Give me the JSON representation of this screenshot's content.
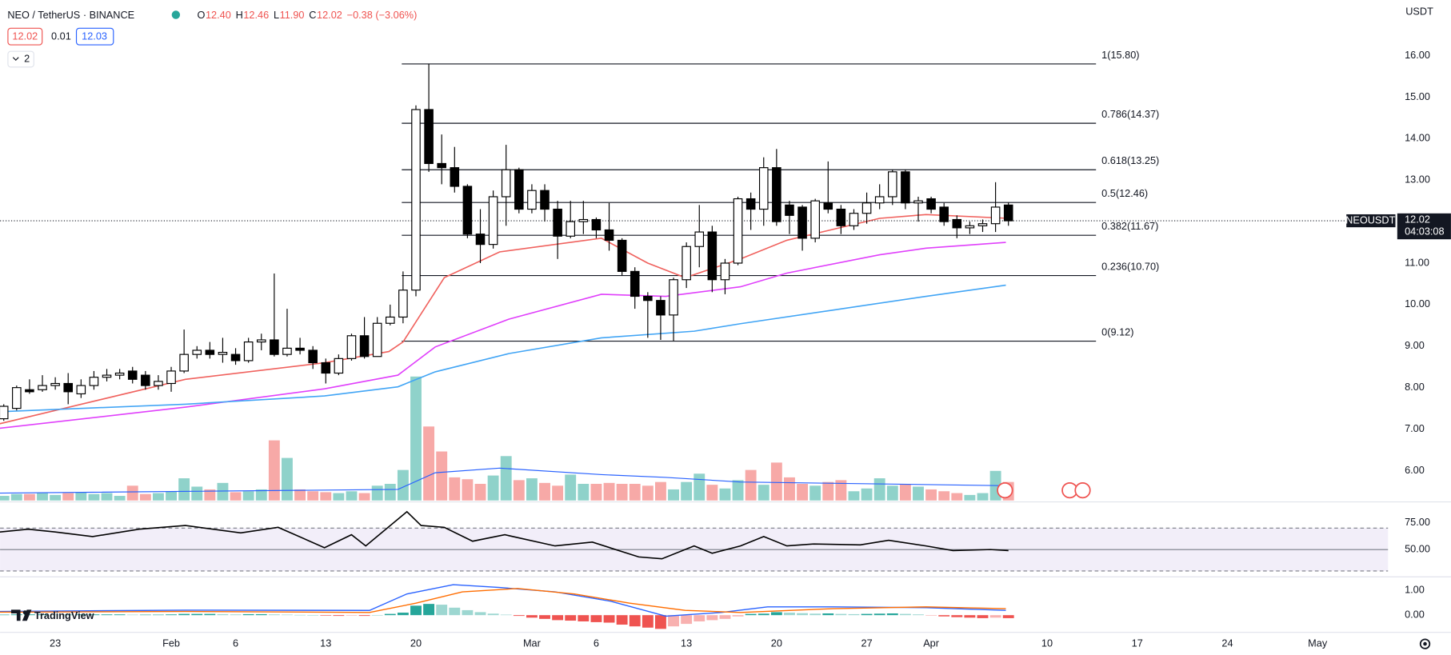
{
  "header": {
    "symbol": "NEO / TetherUS · BINANCE",
    "ohlc": [
      "O",
      "12.40",
      "H",
      "12.46",
      "L",
      "11.90",
      "C",
      "12.02",
      "−0.38 (−3.06%)"
    ],
    "bid": "12.02",
    "spread": "0.01",
    "ask": "12.03",
    "indicators": "2",
    "currency": "USDT",
    "logo": "TradingView"
  },
  "chart_data": {
    "type": "candlestick",
    "xlim": [
      -0.287,
      107.47
    ],
    "xticks": [
      {
        "value": 4,
        "label": "23"
      },
      {
        "value": 13,
        "label": "Feb"
      },
      {
        "value": 18,
        "label": "6"
      },
      {
        "value": 25,
        "label": "13"
      },
      {
        "value": 32,
        "label": "20"
      },
      {
        "value": 41,
        "label": "Mar"
      },
      {
        "value": 46,
        "label": "6"
      },
      {
        "value": 53,
        "label": "13"
      },
      {
        "value": 60,
        "label": "20"
      },
      {
        "value": 67,
        "label": "27"
      },
      {
        "value": 72,
        "label": "Apr"
      },
      {
        "value": 81,
        "label": "10"
      },
      {
        "value": 88,
        "label": "17"
      },
      {
        "value": 95,
        "label": "24"
      },
      {
        "value": 102,
        "label": "May"
      }
    ],
    "ylim": [
      5.28,
      17.34
    ],
    "yticks": [
      {
        "value": 6,
        "label": "6.00"
      },
      {
        "value": 7,
        "label": "7.00"
      },
      {
        "value": 8,
        "label": "8.00"
      },
      {
        "value": 9,
        "label": "9.00"
      },
      {
        "value": 10,
        "label": "10.00"
      },
      {
        "value": 11,
        "label": "11.00"
      },
      {
        "value": 12,
        "label": "12.00"
      },
      {
        "value": 13,
        "label": "13.00"
      },
      {
        "value": 14,
        "label": "14.00"
      },
      {
        "value": 15,
        "label": "15.00"
      },
      {
        "value": 16,
        "label": "16.00"
      }
    ],
    "up_color": "#ffffff",
    "down_color": "#000000",
    "open": [
      7.25,
      7.5,
      7.95,
      7.95,
      8.05,
      8.1,
      7.85,
      8.05,
      8.25,
      8.3,
      8.4,
      8.3,
      8.05,
      8.1,
      8.4,
      8.8,
      8.9,
      8.8,
      8.8,
      8.65,
      9.1,
      9.15,
      8.8,
      8.95,
      8.9,
      8.6,
      8.35,
      8.7,
      9.25,
      8.75,
      9.55,
      9.7,
      10.35,
      14.7,
      13.4,
      13.3,
      12.85,
      11.7,
      11.45,
      12.6,
      13.25,
      12.3,
      12.75,
      12.3,
      11.65,
      12.0,
      12.05,
      11.8,
      11.55,
      10.8,
      10.2,
      10.1,
      9.75,
      10.6,
      11.4,
      11.75,
      10.6,
      11.0,
      12.55,
      12.3,
      13.3,
      12.4,
      12.35,
      11.6,
      12.45,
      12.3,
      11.9,
      12.2,
      12.45,
      12.6,
      13.2,
      12.45,
      12.55,
      12.35,
      12.05,
      11.85,
      11.9,
      11.95,
      12.4
    ],
    "high": [
      7.6,
      8.05,
      8.2,
      8.3,
      8.25,
      8.35,
      8.2,
      8.4,
      8.45,
      8.45,
      8.5,
      8.4,
      8.3,
      8.5,
      9.4,
      9.0,
      9.1,
      9.2,
      8.95,
      9.2,
      9.3,
      10.75,
      9.9,
      9.2,
      9.0,
      8.7,
      8.8,
      9.3,
      9.7,
      9.7,
      10.0,
      10.8,
      14.8,
      15.8,
      14.1,
      13.8,
      12.9,
      12.3,
      12.75,
      13.85,
      13.3,
      12.9,
      12.9,
      12.5,
      12.5,
      12.5,
      12.1,
      12.45,
      11.6,
      10.9,
      10.3,
      10.2,
      10.65,
      11.5,
      12.4,
      11.9,
      11.1,
      12.6,
      12.7,
      13.55,
      13.75,
      12.5,
      12.4,
      12.55,
      13.45,
      12.4,
      12.3,
      12.7,
      12.9,
      13.25,
      13.25,
      12.6,
      12.6,
      12.45,
      12.15,
      12.0,
      12.05,
      12.95,
      12.46
    ],
    "low": [
      7.2,
      7.45,
      7.85,
      7.9,
      7.95,
      7.6,
      7.75,
      7.95,
      8.15,
      8.2,
      8.1,
      7.95,
      7.95,
      7.9,
      8.35,
      8.7,
      8.7,
      8.6,
      8.55,
      8.6,
      8.9,
      8.75,
      8.75,
      8.8,
      8.45,
      8.1,
      8.3,
      8.65,
      8.7,
      8.75,
      9.5,
      9.55,
      10.2,
      13.2,
      12.9,
      12.7,
      11.6,
      11.0,
      11.35,
      11.9,
      12.2,
      12.2,
      12.0,
      11.1,
      11.6,
      11.7,
      11.6,
      11.3,
      10.7,
      9.9,
      9.2,
      9.15,
      9.12,
      10.4,
      10.9,
      10.3,
      10.25,
      10.95,
      11.8,
      11.9,
      11.9,
      11.7,
      11.3,
      11.5,
      12.2,
      11.7,
      11.8,
      11.95,
      12.3,
      12.4,
      12.3,
      12.0,
      12.2,
      11.9,
      11.6,
      11.7,
      11.75,
      11.75,
      11.9
    ],
    "close": [
      7.55,
      8.0,
      7.9,
      8.05,
      8.1,
      7.9,
      8.05,
      8.25,
      8.3,
      8.35,
      8.2,
      8.05,
      8.15,
      8.4,
      8.8,
      8.9,
      8.8,
      8.85,
      8.65,
      9.1,
      9.15,
      8.8,
      8.95,
      8.9,
      8.6,
      8.35,
      8.7,
      9.25,
      8.75,
      9.55,
      9.7,
      10.35,
      14.7,
      13.4,
      13.3,
      12.85,
      11.7,
      11.45,
      12.6,
      13.25,
      12.3,
      12.75,
      12.3,
      11.65,
      12.0,
      12.05,
      11.8,
      11.55,
      10.8,
      10.2,
      10.1,
      9.75,
      10.6,
      11.4,
      11.75,
      10.6,
      11.0,
      12.55,
      12.3,
      13.3,
      12.0,
      12.15,
      11.6,
      12.5,
      12.3,
      11.9,
      12.2,
      12.45,
      12.6,
      13.2,
      12.45,
      12.5,
      12.3,
      12.0,
      11.85,
      11.9,
      11.95,
      12.35,
      12.02
    ],
    "series": [
      {
        "color": "#f0625e",
        "x": [
          -0.3,
          14.1,
          24.9,
          29.9,
          31,
          34.2,
          38.5,
          46.4,
          50,
          52.9,
          57.2,
          60.8,
          68,
          71.6,
          78
        ],
        "values": [
          7.13,
          8.2,
          8.6,
          8.87,
          9.1,
          10.65,
          11.27,
          11.6,
          11.0,
          10.65,
          11.1,
          11.55,
          12.08,
          12.17,
          12.08
        ]
      },
      {
        "color": "#e040fb",
        "x": [
          -0.3,
          14.1,
          24.9,
          30.6,
          33.5,
          39.2,
          46.4,
          51.4,
          57.2,
          60.8,
          68,
          71.6,
          77.8
        ],
        "values": [
          7.02,
          7.53,
          7.97,
          8.3,
          8.98,
          9.65,
          10.25,
          10.2,
          10.43,
          10.76,
          11.2,
          11.36,
          11.5
        ]
      },
      {
        "color": "#42a5f5",
        "x": [
          -0.3,
          14.1,
          24.9,
          30.6,
          33.5,
          39.2,
          46.4,
          53.6,
          57.2,
          64.4,
          71.6,
          77.8
        ],
        "values": [
          7.42,
          7.6,
          7.8,
          8.02,
          8.38,
          8.82,
          9.2,
          9.36,
          9.54,
          9.87,
          10.2,
          10.47
        ]
      }
    ],
    "fib": {
      "x": [
        30.9,
        84.8
      ],
      "levels": [
        {
          "value": 15.8,
          "label": "1(15.80)"
        },
        {
          "value": 14.37,
          "label": "0.786(14.37)"
        },
        {
          "value": 13.25,
          "label": "0.618(13.25)"
        },
        {
          "value": 12.46,
          "label": "0.5(12.46)"
        },
        {
          "value": 11.67,
          "label": "0.382(11.67)"
        },
        {
          "value": 10.7,
          "label": "0.236(10.70)"
        },
        {
          "value": 9.12,
          "label": "0(9.12)"
        }
      ]
    },
    "last_price": {
      "symbol": "NEOUSDT",
      "value": 12.02,
      "label": "12.02",
      "countdown": "04:03:08"
    },
    "volume": {
      "up_color": "#8fd2ca",
      "down_color": "#f7a9a7",
      "values": [
        5,
        7,
        7,
        8,
        6,
        8,
        9,
        7,
        8,
        5,
        16,
        7,
        8,
        10,
        24,
        15,
        12,
        19,
        9,
        10,
        12,
        65,
        46,
        12,
        10,
        9,
        8,
        10,
        8,
        16,
        18,
        33,
        134,
        80,
        53,
        25,
        23,
        18,
        27,
        48,
        22,
        24,
        19,
        16,
        28,
        18,
        18,
        19,
        18,
        18,
        16,
        20,
        12,
        20,
        29,
        17,
        13,
        22,
        33,
        17,
        41,
        25,
        18,
        16,
        20,
        22,
        10,
        13,
        24,
        16,
        18,
        15,
        12,
        10,
        8,
        6,
        8,
        32,
        20
      ],
      "ma": {
        "color": "#2962ff",
        "x": [
          -0.3,
          30.6,
          33.5,
          38.5,
          46.4,
          51.4,
          57.2,
          77.8
        ],
        "values": [
          8,
          12,
          30,
          35,
          28,
          25,
          20,
          16
        ]
      }
    },
    "rsi": {
      "ylim": [
        25,
        94
      ],
      "yticks": [
        {
          "value": 75,
          "label": "75.00"
        },
        {
          "value": 50,
          "label": "50.00"
        }
      ],
      "levels": [
        70,
        50,
        30
      ],
      "color": "#000000",
      "x": [
        -0.3,
        1.9,
        4.0,
        6.9,
        10.5,
        14.1,
        18.4,
        21.3,
        24.9,
        27.0,
        28.1,
        31.3,
        32.4,
        34.2,
        36.4,
        38.9,
        42.8,
        45.7,
        49.3,
        51.1,
        53.6,
        55.0,
        57.2,
        59.0,
        60.8,
        62.9,
        66.5,
        68.7,
        71.6,
        73.7,
        76.6,
        78
      ],
      "values": [
        66.4,
        69.0,
        66.4,
        62.1,
        69.0,
        72.4,
        65.5,
        70.7,
        51.7,
        63.8,
        53.4,
        85.3,
        72.4,
        70.7,
        57.8,
        63.8,
        53.4,
        56.9,
        43.1,
        41.4,
        53.4,
        46.6,
        53.4,
        62.1,
        53.4,
        55.2,
        54.3,
        58.6,
        53.4,
        49.1,
        50.0,
        49.1
      ]
    },
    "macd": {
      "ylim": [
        -0.67,
        1.48
      ],
      "yticks": [
        {
          "value": 1,
          "label": "1.00"
        },
        {
          "value": 0,
          "label": "0.00"
        }
      ],
      "macd": {
        "color": "#2962ff",
        "x": [
          -0.3,
          14.1,
          28.4,
          31.3,
          34.9,
          38.5,
          42.8,
          47.1,
          51.4,
          55.7,
          59.3,
          64.4,
          71.6,
          77.8
        ],
        "values": [
          0.15,
          0.2,
          0.19,
          0.85,
          1.22,
          1.11,
          0.93,
          0.56,
          -0.04,
          0.11,
          0.33,
          0.33,
          0.3,
          0.19
        ]
      },
      "signal": {
        "color": "#ff6d00",
        "x": [
          -0.3,
          14.1,
          28.4,
          32.0,
          35.6,
          39.9,
          44.3,
          48.6,
          52.9,
          57.2,
          64.4,
          71.6,
          77.8
        ],
        "values": [
          0.12,
          0.15,
          0.11,
          0.48,
          0.93,
          1.07,
          0.85,
          0.48,
          0.19,
          0.11,
          0.26,
          0.33,
          0.26
        ]
      },
      "histogram": [
        0.02,
        0.03,
        0.03,
        0.03,
        0.02,
        0.02,
        0.03,
        0.03,
        0.03,
        0.03,
        0.02,
        0.02,
        0.02,
        0.03,
        0.05,
        0.05,
        0.05,
        0.04,
        0.03,
        0.04,
        0.04,
        0.03,
        0.02,
        0.01,
        0.0,
        -0.02,
        -0.03,
        -0.02,
        -0.03,
        0.0,
        0.05,
        0.1,
        0.38,
        0.45,
        0.42,
        0.3,
        0.2,
        0.12,
        0.06,
        0.02,
        -0.03,
        -0.1,
        -0.15,
        -0.2,
        -0.22,
        -0.25,
        -0.28,
        -0.3,
        -0.38,
        -0.45,
        -0.5,
        -0.55,
        -0.45,
        -0.35,
        -0.25,
        -0.2,
        -0.15,
        -0.05,
        0.05,
        0.06,
        0.12,
        0.1,
        0.08,
        0.06,
        0.07,
        0.05,
        0.04,
        0.05,
        0.06,
        0.07,
        0.05,
        0.03,
        -0.02,
        -0.05,
        -0.08,
        -0.1,
        -0.12,
        -0.1,
        -0.12
      ],
      "up_color": "#26a69a",
      "down_color": "#ef5350"
    }
  }
}
